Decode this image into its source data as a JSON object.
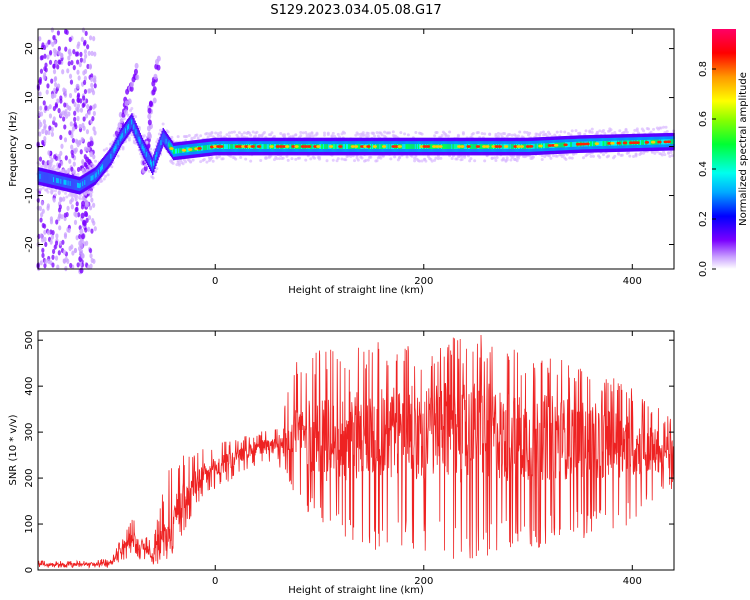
{
  "title": "S129.2023.034.05.08.G17",
  "chart_data": [
    {
      "type": "heatmap",
      "xlabel": "Height of straight line (km)",
      "ylabel": "Frequency (Hz)",
      "xlim": [
        -170,
        440
      ],
      "ylim": [
        -25,
        24
      ],
      "xticks": [
        0,
        200,
        400
      ],
      "yticks": [
        -20,
        -10,
        0,
        10,
        20
      ],
      "colorbar": {
        "label": "Normalized spectral amplitude",
        "range": [
          0,
          0.96
        ],
        "ticks": [
          0.0,
          0.2,
          0.4,
          0.6,
          0.8
        ],
        "colormap": "hsv-rainbow"
      },
      "ridge": {
        "description_points": [
          [
            -170,
            -6
          ],
          [
            -150,
            -7
          ],
          [
            -130,
            -8
          ],
          [
            -115,
            -6
          ],
          [
            -100,
            -2
          ],
          [
            -90,
            2
          ],
          [
            -80,
            5
          ],
          [
            -70,
            0
          ],
          [
            -60,
            -4
          ],
          [
            -50,
            2
          ],
          [
            -40,
            -1
          ],
          [
            0,
            0
          ],
          [
            100,
            0
          ],
          [
            200,
            0
          ],
          [
            300,
            0
          ],
          [
            350,
            0.5
          ],
          [
            440,
            1
          ]
        ],
        "peak_amplitude": 0.96
      }
    },
    {
      "type": "line",
      "xlabel": "Height of straight line (km)",
      "ylabel": "SNR (10 * v/v)",
      "xlim": [
        -170,
        440
      ],
      "ylim": [
        0,
        520
      ],
      "xticks": [
        0,
        200,
        400
      ],
      "yticks": [
        0,
        100,
        200,
        300,
        400,
        500
      ],
      "color": "#ee2222",
      "envelope": {
        "x": [
          -170,
          -130,
          -100,
          -80,
          -60,
          -45,
          -30,
          -15,
          0,
          20,
          40,
          60,
          80,
          100,
          150,
          200,
          250,
          300,
          350,
          400,
          440
        ],
        "low": [
          5,
          5,
          5,
          30,
          10,
          20,
          80,
          150,
          175,
          200,
          230,
          230,
          150,
          90,
          40,
          30,
          20,
          40,
          60,
          100,
          180
        ],
        "mean": [
          12,
          12,
          14,
          70,
          35,
          90,
          160,
          200,
          220,
          245,
          265,
          270,
          300,
          280,
          300,
          300,
          300,
          290,
          285,
          270,
          250
        ],
        "high": [
          20,
          20,
          25,
          115,
          60,
          230,
          250,
          270,
          280,
          285,
          300,
          310,
          470,
          480,
          500,
          490,
          520,
          470,
          450,
          400,
          330
        ]
      }
    }
  ]
}
